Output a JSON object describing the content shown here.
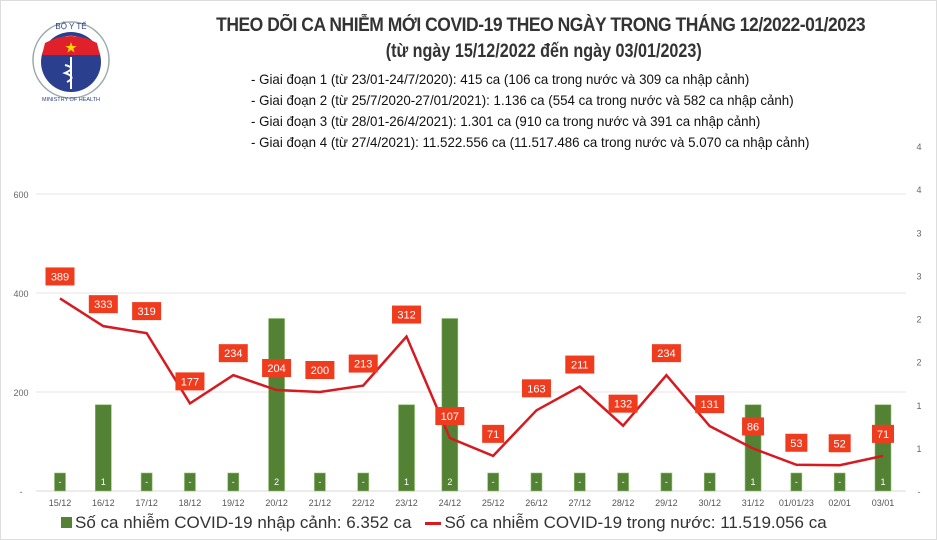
{
  "logo": {
    "text_top": "BỘ Y TẾ",
    "text_bottom": "MINISTRY OF HEALTH"
  },
  "title": "THEO DÕI CA NHIỄM MỚI COVID-19 THEO NGÀY TRONG THÁNG 12/2022-01/2023",
  "subtitle": "(từ ngày 15/12/2022 đến ngày 03/01/2023)",
  "phases": [
    "- Giai đoạn 1 (từ 23/01-24/7/2020): 415 ca (106 ca trong nước và 309 ca nhập cảnh)",
    "- Giai đoạn 2 (từ 25/7/2020-27/01/2021): 1.136 ca (554 ca trong nước và 582 ca nhập cảnh)",
    "- Giai đoạn 3 (từ 28/01-26/4/2021): 1.301 ca (910 ca trong nước và 391 ca nhập cảnh)",
    "- Giai đoạn 4 (từ 27/4/2021): 11.522.556 ca (11.517.486 ca trong nước và 5.070 ca nhập cảnh)"
  ],
  "chart_data": {
    "type": "bar+line",
    "categories": [
      "15/12",
      "16/12",
      "17/12",
      "18/12",
      "19/12",
      "20/12",
      "21/12",
      "22/12",
      "23/12",
      "24/12",
      "25/12",
      "26/12",
      "27/12",
      "28/12",
      "29/12",
      "30/12",
      "31/12",
      "01/01/23",
      "02/01",
      "03/01"
    ],
    "series": [
      {
        "name": "Số ca nhiễm COVID-19 nhập cảnh: 6.352 ca",
        "type": "bar",
        "axis": "right",
        "color": "#548235",
        "values": [
          0,
          1,
          0,
          0,
          0,
          2,
          0,
          0,
          1,
          2,
          0,
          0,
          0,
          0,
          0,
          0,
          1,
          0,
          0,
          1
        ],
        "labels": [
          "-",
          "1",
          "-",
          "-",
          "-",
          "2",
          "-",
          "-",
          "1",
          "2",
          "-",
          "-",
          "-",
          "-",
          "-",
          "-",
          "1",
          "-",
          "-",
          "1"
        ]
      },
      {
        "name": "Số ca nhiễm COVID-19 trong nước: 11.519.056 ca",
        "type": "line",
        "axis": "left",
        "color": "#d71920",
        "values": [
          389,
          333,
          319,
          177,
          234,
          204,
          200,
          213,
          312,
          107,
          71,
          163,
          211,
          132,
          234,
          131,
          86,
          53,
          52,
          71
        ]
      }
    ],
    "left_axis": {
      "ticks": [
        "-",
        "200",
        "400",
        "600"
      ],
      "range": [
        0,
        600
      ]
    },
    "right_axis": {
      "ticks": [
        "-",
        "1",
        "1",
        "2",
        "2",
        "3",
        "3",
        "4",
        "4"
      ],
      "range": [
        0,
        4
      ]
    },
    "label_color": "#f03c1e",
    "grid": true,
    "legend_position": "bottom"
  }
}
